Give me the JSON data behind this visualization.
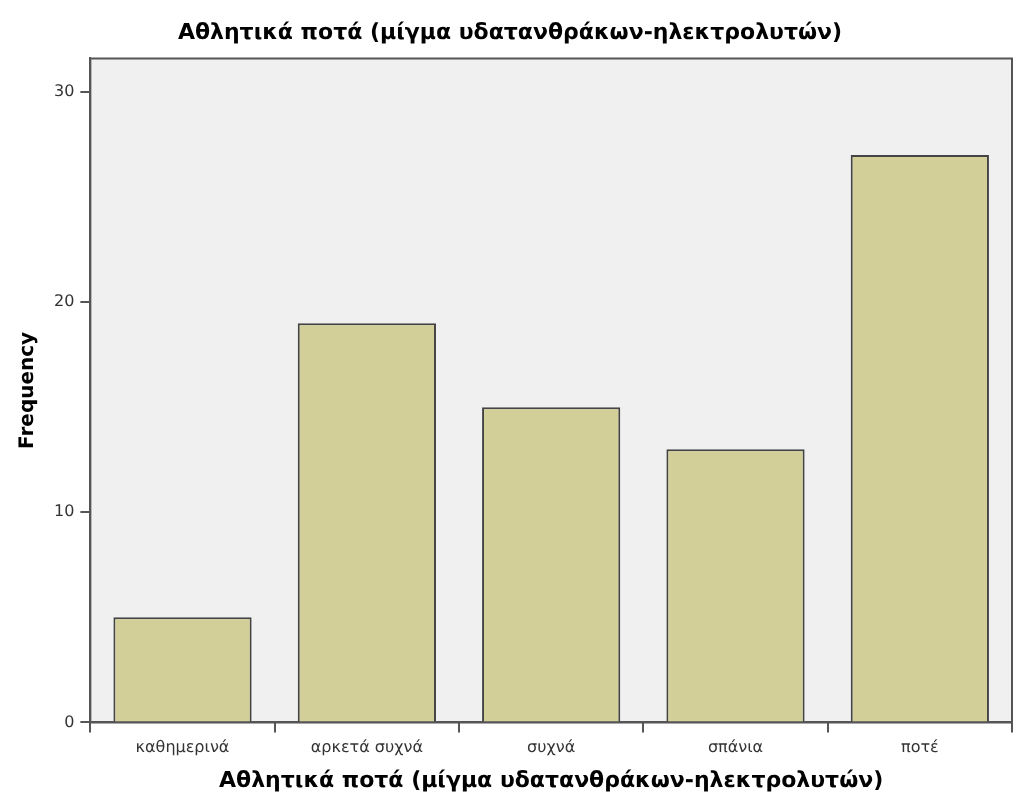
{
  "chart_data": {
    "type": "bar",
    "title": "Αθλητικά ποτά (μίγμα υδατανθράκων-ηλεκτρολυτών)",
    "xlabel": "Αθλητικά ποτά (μίγμα υδατανθράκων-ηλεκτρολυτών)",
    "ylabel": "Frequency",
    "categories": [
      "καθημερινά",
      "αρκετά συχνά",
      "συχνά",
      "σπάνια",
      "ποτέ"
    ],
    "values": [
      5,
      19,
      15,
      13,
      27
    ],
    "color": "#d3cf98",
    "ylim": [
      0,
      31.6
    ],
    "yticks": [
      0,
      10,
      20,
      30
    ],
    "grid": false,
    "legend": false
  }
}
